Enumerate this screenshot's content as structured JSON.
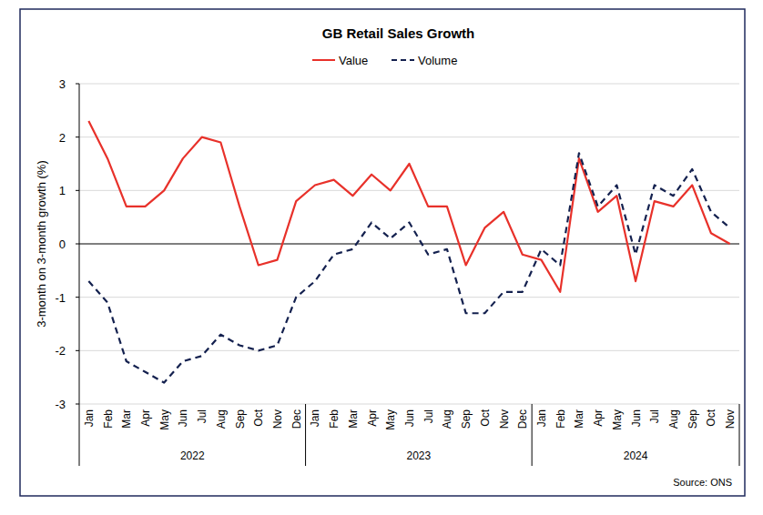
{
  "chart_data": {
    "type": "line",
    "title": "GB Retail Sales Growth",
    "y_label": "3-month on 3-month growth (%)",
    "annotations": [
      "Source: ONS"
    ],
    "categories": [
      "Jan",
      "Feb",
      "Mar",
      "Apr",
      "May",
      "Jun",
      "Jul",
      "Aug",
      "Sep",
      "Oct",
      "Nov",
      "Dec",
      "Jan",
      "Feb",
      "Mar",
      "Apr",
      "May",
      "Jun",
      "Jul",
      "Aug",
      "Sep",
      "Oct",
      "Nov",
      "Dec",
      "Jan",
      "Feb",
      "Mar",
      "Apr",
      "May",
      "Jun",
      "Jul",
      "Aug",
      "Sep",
      "Oct",
      "Nov"
    ],
    "x_groups": [
      {
        "label": "2022",
        "count": 12
      },
      {
        "label": "2023",
        "count": 12
      },
      {
        "label": "2024",
        "count": 11
      }
    ],
    "series": [
      {
        "name": "Value",
        "color": "#e8312a",
        "line_style": "solid",
        "values": [
          2.3,
          1.6,
          0.7,
          0.7,
          1.0,
          1.6,
          2.0,
          1.9,
          0.7,
          -0.4,
          -0.3,
          0.8,
          1.1,
          1.2,
          0.9,
          1.3,
          1.0,
          1.5,
          0.7,
          0.7,
          -0.4,
          0.3,
          0.6,
          -0.2,
          -0.3,
          -0.9,
          1.6,
          0.6,
          0.9,
          -0.7,
          0.8,
          0.7,
          1.1,
          0.2,
          0.0
        ]
      },
      {
        "name": "Volume",
        "color": "#14214f",
        "line_style": "dashed",
        "values": [
          -0.7,
          -1.1,
          -2.2,
          -2.4,
          -2.6,
          -2.2,
          -2.1,
          -1.7,
          -1.9,
          -2.0,
          -1.9,
          -1.0,
          -0.7,
          -0.2,
          -0.1,
          0.4,
          0.1,
          0.4,
          -0.2,
          -0.1,
          -1.3,
          -1.3,
          -0.9,
          -0.9,
          -0.1,
          -0.4,
          1.7,
          0.7,
          1.1,
          -0.2,
          1.1,
          0.9,
          1.4,
          0.6,
          0.3
        ]
      }
    ],
    "ylim": [
      -3,
      3
    ],
    "yticks": [
      -3,
      -2,
      -1,
      0,
      1,
      2,
      3
    ],
    "grid": true,
    "legend": "top"
  }
}
